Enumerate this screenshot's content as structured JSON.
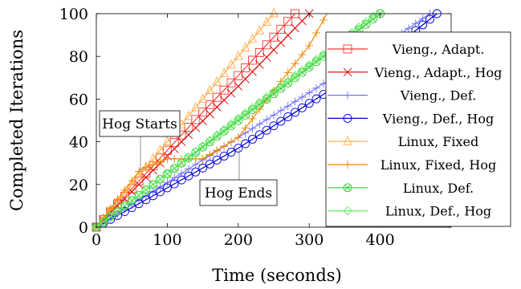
{
  "chart_data": {
    "type": "line",
    "xlabel": "Time (seconds)",
    "ylabel": "Completed Iterations",
    "xlim": [
      0,
      500
    ],
    "ylim": [
      0,
      100
    ],
    "x_ticks": [
      "0",
      "100",
      "200",
      "300",
      "400"
    ],
    "y_ticks": [
      "0",
      "20",
      "40",
      "60",
      "80",
      "100"
    ],
    "grid": false,
    "legend_position": "right",
    "annotations": [
      {
        "text": "Hog Starts",
        "x": 62
      },
      {
        "text": "Hog Ends",
        "x": 203
      }
    ],
    "series": [
      {
        "name": "Vieng., Adapt.",
        "color": "#ff3333",
        "marker": "square",
        "x": [
          0,
          50,
          100,
          150,
          200,
          250,
          280
        ],
        "y": [
          0,
          18,
          36,
          54,
          71,
          89,
          100
        ]
      },
      {
        "name": "Vieng., Adapt., Hog",
        "color": "#dd0000",
        "marker": "x",
        "x": [
          0,
          60,
          120,
          160,
          200,
          250,
          300
        ],
        "y": [
          0,
          20,
          40,
          53,
          66,
          83,
          100
        ]
      },
      {
        "name": "Vieng., Def.",
        "color": "#7070ff",
        "marker": "plus",
        "x": [
          0,
          100,
          200,
          300,
          400,
          470
        ],
        "y": [
          0,
          21,
          42,
          63,
          84,
          100
        ]
      },
      {
        "name": "Vieng., Def., Hog",
        "color": "#0000dd",
        "marker": "circle",
        "x": [
          0,
          60,
          200,
          300,
          400,
          480
        ],
        "y": [
          0,
          11,
          37,
          58,
          79,
          100
        ]
      },
      {
        "name": "Linux, Fixed",
        "color": "#ffaa44",
        "marker": "triangle",
        "x": [
          0,
          100,
          200,
          250
        ],
        "y": [
          0,
          40,
          80,
          100
        ]
      },
      {
        "name": "Linux, Fixed, Hog",
        "color": "#ee8800",
        "marker": "plus",
        "x": [
          0,
          62,
          100,
          150,
          200,
          250,
          300,
          325
        ],
        "y": [
          0,
          27,
          32,
          32,
          42,
          64,
          85,
          100
        ]
      },
      {
        "name": "Linux, Def.",
        "color": "#33cc33",
        "marker": "circle-x",
        "x": [
          0,
          100,
          200,
          300,
          400
        ],
        "y": [
          0,
          25,
          50,
          75,
          100
        ]
      },
      {
        "name": "Linux, Def., Hog",
        "color": "#66ee66",
        "marker": "diamond",
        "x": [
          0,
          100,
          200,
          300,
          395
        ],
        "y": [
          0,
          25,
          51,
          76,
          100
        ]
      }
    ]
  }
}
